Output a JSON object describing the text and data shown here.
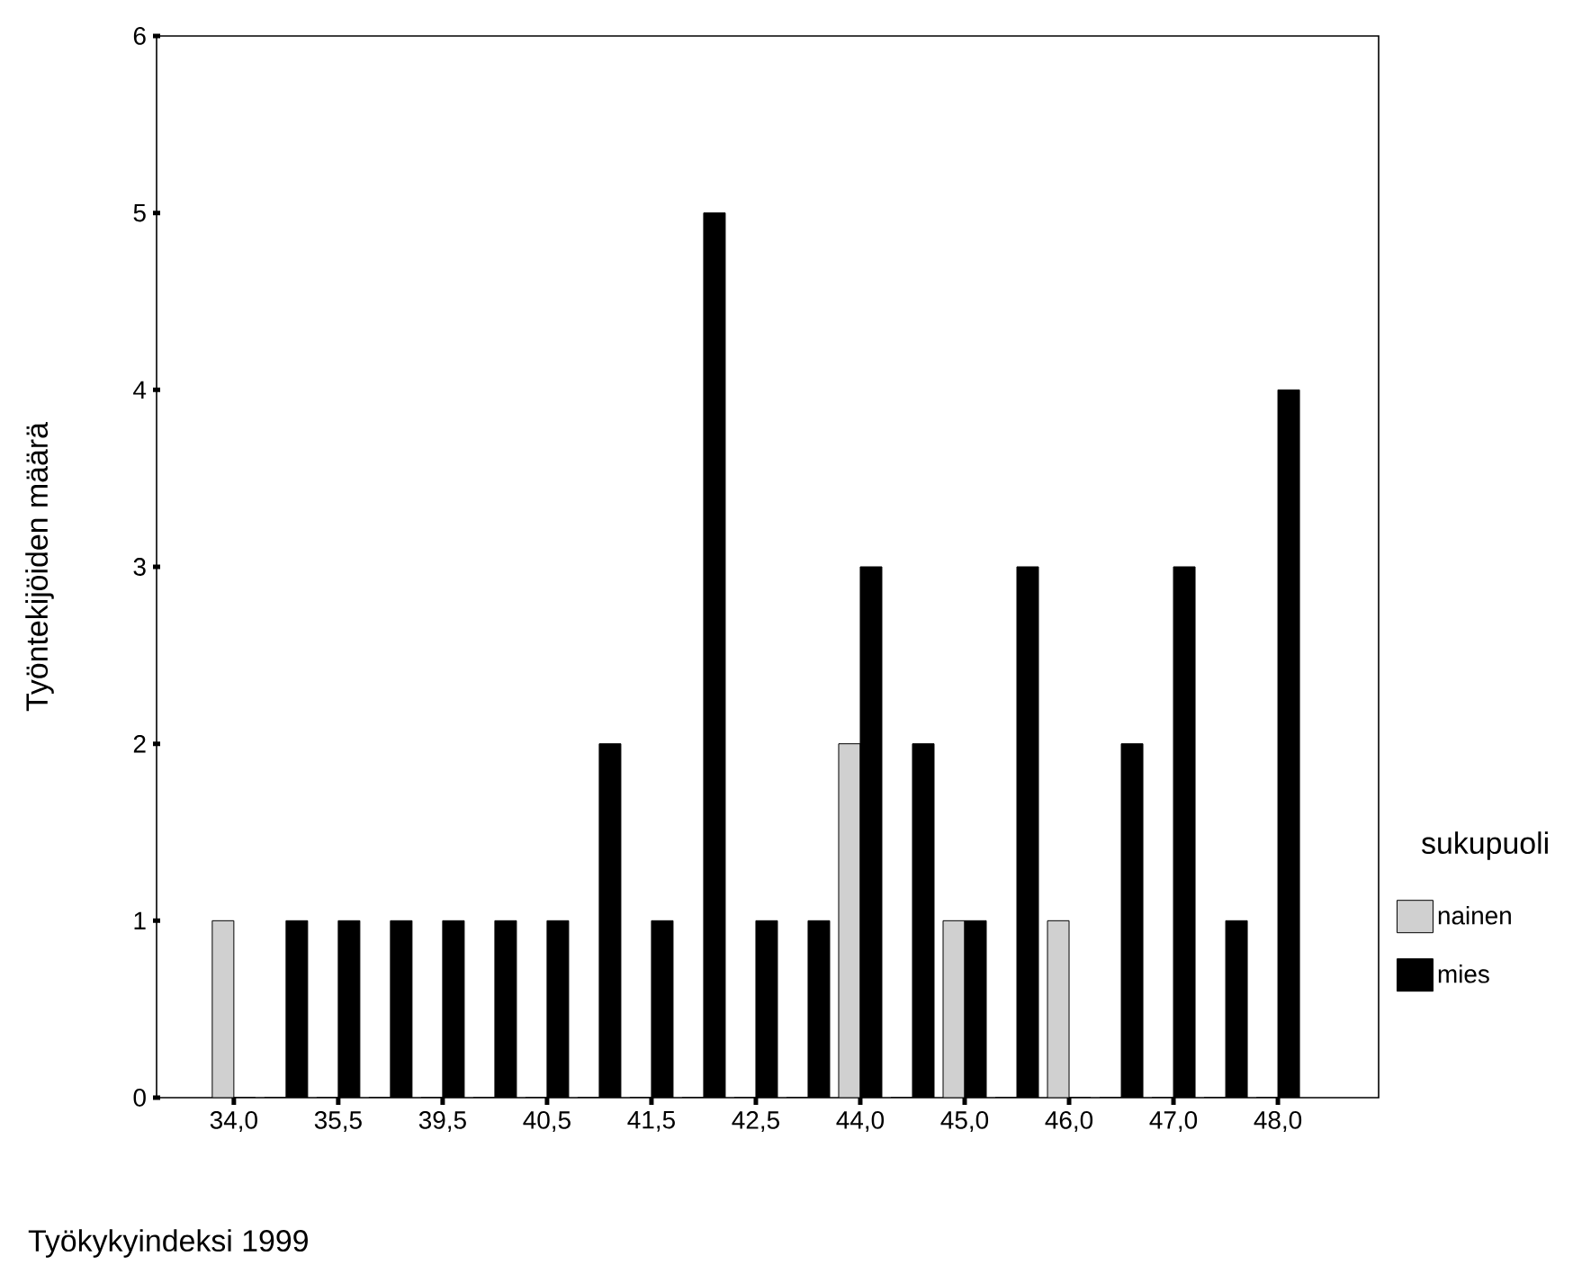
{
  "chart_data": {
    "type": "bar",
    "xlabel": "Työkykyindeksi 1999",
    "ylabel": "Työntekijöiden määrä",
    "legend_title": "sukupuoli",
    "categories": [
      "34,0",
      null,
      "35,5",
      null,
      "39,5",
      null,
      "40,5",
      null,
      "41,5",
      null,
      "42,5",
      null,
      "44,0",
      null,
      "45,0",
      null,
      "46,0",
      null,
      "47,0",
      null,
      "48,0"
    ],
    "series": [
      {
        "name": "nainen",
        "color": "#d0d0d0",
        "values": [
          1,
          0,
          0,
          0,
          0,
          0,
          0,
          0,
          0,
          0,
          0,
          0,
          2,
          0,
          1,
          0,
          1,
          0,
          0,
          0,
          0
        ]
      },
      {
        "name": "mies",
        "color": "#000000",
        "values": [
          0,
          1,
          1,
          1,
          1,
          1,
          1,
          2,
          1,
          5,
          1,
          1,
          3,
          2,
          1,
          3,
          0,
          2,
          3,
          1,
          4
        ]
      }
    ],
    "ylim": [
      0,
      6
    ],
    "yticks": [
      0,
      1,
      2,
      3,
      4,
      5,
      6
    ],
    "legend": "right",
    "grid": false
  }
}
